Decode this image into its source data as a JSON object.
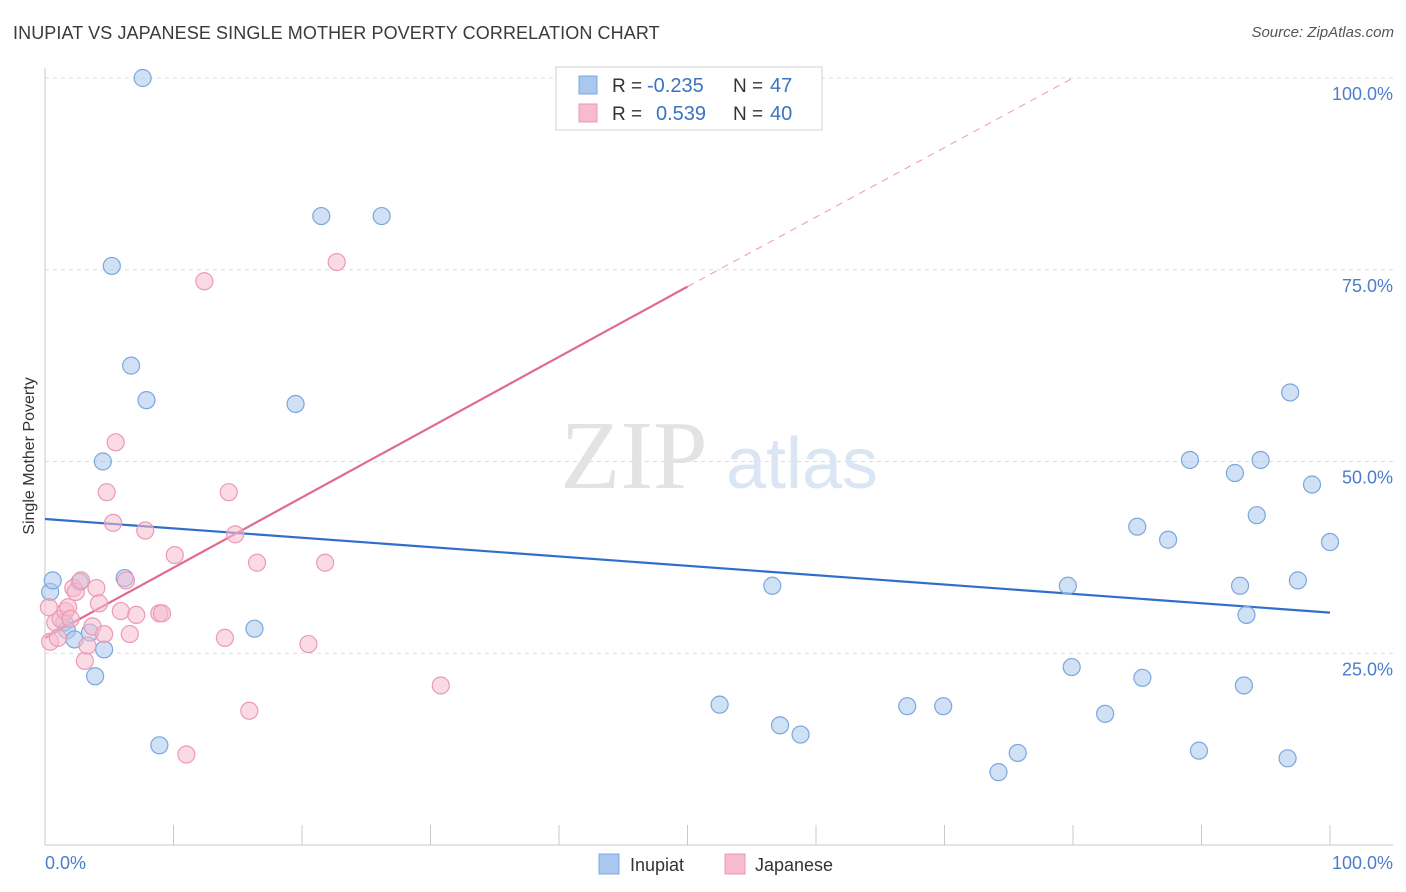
{
  "header": {
    "title": "INUPIAT VS JAPANESE SINGLE MOTHER POVERTY CORRELATION CHART",
    "source": "Source: ZipAtlas.com"
  },
  "watermark": {
    "zip": "ZIP",
    "atlas": "atlas"
  },
  "colors": {
    "inupiat_fill": "#a9c8ef",
    "inupiat_stroke": "#7ba7de",
    "inupiat_line": "#2f6fcb",
    "japanese_fill": "#f6bccd",
    "japanese_stroke": "#ec9ab3",
    "japanese_line": "#e06a92",
    "grid": "#dcdcdc",
    "tick_text": "#4a7ec9"
  },
  "stats": {
    "inupiat": {
      "r_label": "R =",
      "r": "-0.235",
      "n_label": "N =",
      "n": "47"
    },
    "japanese": {
      "r_label": "R =",
      "r": "0.539",
      "n_label": "N =",
      "n": "40"
    }
  },
  "chart_data": {
    "type": "scatter",
    "title": "INUPIAT VS JAPANESE SINGLE MOTHER POVERTY CORRELATION CHART",
    "xlabel": "",
    "ylabel": "Single Mother Poverty",
    "xlim": [
      0,
      100
    ],
    "ylim": [
      0,
      100
    ],
    "x_tick_labels": [
      "0.0%",
      "100.0%"
    ],
    "y_ticks": [
      25,
      50,
      75,
      100
    ],
    "y_tick_labels": [
      "25.0%",
      "50.0%",
      "75.0%",
      "100.0%"
    ],
    "grid": true,
    "legend_position": "bottom-center",
    "series": [
      {
        "name": "Inupiat",
        "color": "#a9c8ef",
        "r": -0.235,
        "n": 47,
        "trend": {
          "x0": 0,
          "y0": 42.5,
          "x1": 100,
          "y1": 30.3
        },
        "points": [
          [
            0.4,
            33.0
          ],
          [
            0.6,
            34.5
          ],
          [
            1.5,
            29.0
          ],
          [
            1.7,
            28.0
          ],
          [
            2.3,
            26.8
          ],
          [
            2.7,
            34.3
          ],
          [
            3.5,
            27.7
          ],
          [
            3.9,
            22.0
          ],
          [
            4.6,
            25.5
          ],
          [
            4.5,
            50.0
          ],
          [
            5.2,
            75.5
          ],
          [
            6.2,
            34.8
          ],
          [
            6.7,
            62.5
          ],
          [
            7.6,
            100.0
          ],
          [
            7.9,
            58.0
          ],
          [
            8.9,
            13.0
          ],
          [
            16.3,
            28.2
          ],
          [
            19.5,
            57.5
          ],
          [
            21.5,
            82.0
          ],
          [
            26.2,
            82.0
          ],
          [
            52.5,
            18.3
          ],
          [
            56.6,
            33.8
          ],
          [
            57.2,
            15.6
          ],
          [
            58.8,
            14.4
          ],
          [
            67.1,
            18.1
          ],
          [
            69.9,
            18.1
          ],
          [
            74.2,
            9.5
          ],
          [
            75.7,
            12.0
          ],
          [
            79.6,
            33.8
          ],
          [
            79.9,
            23.2
          ],
          [
            82.5,
            17.1
          ],
          [
            85.0,
            41.5
          ],
          [
            85.4,
            21.8
          ],
          [
            87.4,
            39.8
          ],
          [
            89.1,
            50.2
          ],
          [
            89.8,
            12.3
          ],
          [
            92.6,
            48.5
          ],
          [
            93.0,
            33.8
          ],
          [
            93.3,
            20.8
          ],
          [
            93.5,
            30.0
          ],
          [
            94.3,
            43.0
          ],
          [
            94.6,
            50.2
          ],
          [
            96.7,
            11.3
          ],
          [
            96.9,
            59.0
          ],
          [
            97.5,
            34.5
          ],
          [
            98.6,
            47.0
          ],
          [
            100.0,
            39.5
          ]
        ]
      },
      {
        "name": "Japanese",
        "color": "#f6bccd",
        "r": 0.539,
        "n": 40,
        "trend": {
          "x0": 0,
          "y0": 27.0,
          "x1": 50,
          "y1": 72.8
        },
        "trend_dashed": {
          "x0": 50,
          "y0": 72.8,
          "x1": 80,
          "y1": 100.0
        },
        "points": [
          [
            0.3,
            31.0
          ],
          [
            0.4,
            26.5
          ],
          [
            0.8,
            29.0
          ],
          [
            1.0,
            27.0
          ],
          [
            1.2,
            29.5
          ],
          [
            1.6,
            30.5
          ],
          [
            1.8,
            31.0
          ],
          [
            2.0,
            29.5
          ],
          [
            2.2,
            33.5
          ],
          [
            2.4,
            33.0
          ],
          [
            2.8,
            34.5
          ],
          [
            3.1,
            24.0
          ],
          [
            3.3,
            26.0
          ],
          [
            3.7,
            28.5
          ],
          [
            4.0,
            33.5
          ],
          [
            4.2,
            31.5
          ],
          [
            4.6,
            27.5
          ],
          [
            4.8,
            46.0
          ],
          [
            5.3,
            42.0
          ],
          [
            5.5,
            52.5
          ],
          [
            5.9,
            30.5
          ],
          [
            6.3,
            34.5
          ],
          [
            6.6,
            27.5
          ],
          [
            7.1,
            30.0
          ],
          [
            7.8,
            41.0
          ],
          [
            8.9,
            30.2
          ],
          [
            9.1,
            30.2
          ],
          [
            10.1,
            37.8
          ],
          [
            11.0,
            11.8
          ],
          [
            12.4,
            73.5
          ],
          [
            14.0,
            27.0
          ],
          [
            14.3,
            46.0
          ],
          [
            14.8,
            40.5
          ],
          [
            15.9,
            17.5
          ],
          [
            16.5,
            36.8
          ],
          [
            20.5,
            26.2
          ],
          [
            21.8,
            36.8
          ],
          [
            22.7,
            76.0
          ],
          [
            30.8,
            20.8
          ],
          [
            47.3,
            100.0
          ]
        ]
      }
    ]
  }
}
